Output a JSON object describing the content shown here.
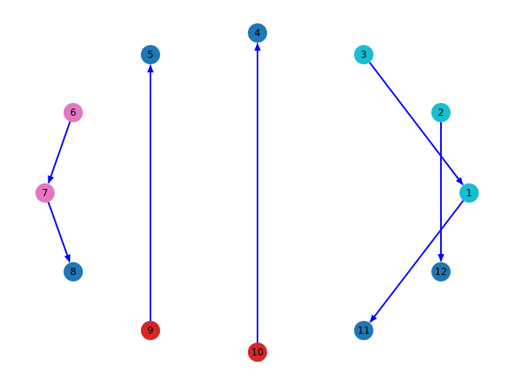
{
  "graph": {
    "edge_color": "#0000ff",
    "nodes": [
      {
        "id": "1",
        "label": "1",
        "color": "#17becf"
      },
      {
        "id": "2",
        "label": "2",
        "color": "#17becf"
      },
      {
        "id": "3",
        "label": "3",
        "color": "#17becf"
      },
      {
        "id": "4",
        "label": "4",
        "color": "#1f77b4"
      },
      {
        "id": "5",
        "label": "5",
        "color": "#1f77b4"
      },
      {
        "id": "6",
        "label": "6",
        "color": "#e377c2"
      },
      {
        "id": "7",
        "label": "7",
        "color": "#e377c2"
      },
      {
        "id": "8",
        "label": "8",
        "color": "#1f77b4"
      },
      {
        "id": "9",
        "label": "9",
        "color": "#d62728"
      },
      {
        "id": "10",
        "label": "10",
        "color": "#d62728"
      },
      {
        "id": "11",
        "label": "11",
        "color": "#1f77b4"
      },
      {
        "id": "12",
        "label": "12",
        "color": "#1f77b4"
      }
    ],
    "edges": [
      {
        "source": "3",
        "target": "1"
      },
      {
        "source": "1",
        "target": "11"
      },
      {
        "source": "2",
        "target": "12"
      },
      {
        "source": "10",
        "target": "4"
      },
      {
        "source": "9",
        "target": "5"
      },
      {
        "source": "6",
        "target": "7"
      },
      {
        "source": "7",
        "target": "8"
      }
    ]
  }
}
